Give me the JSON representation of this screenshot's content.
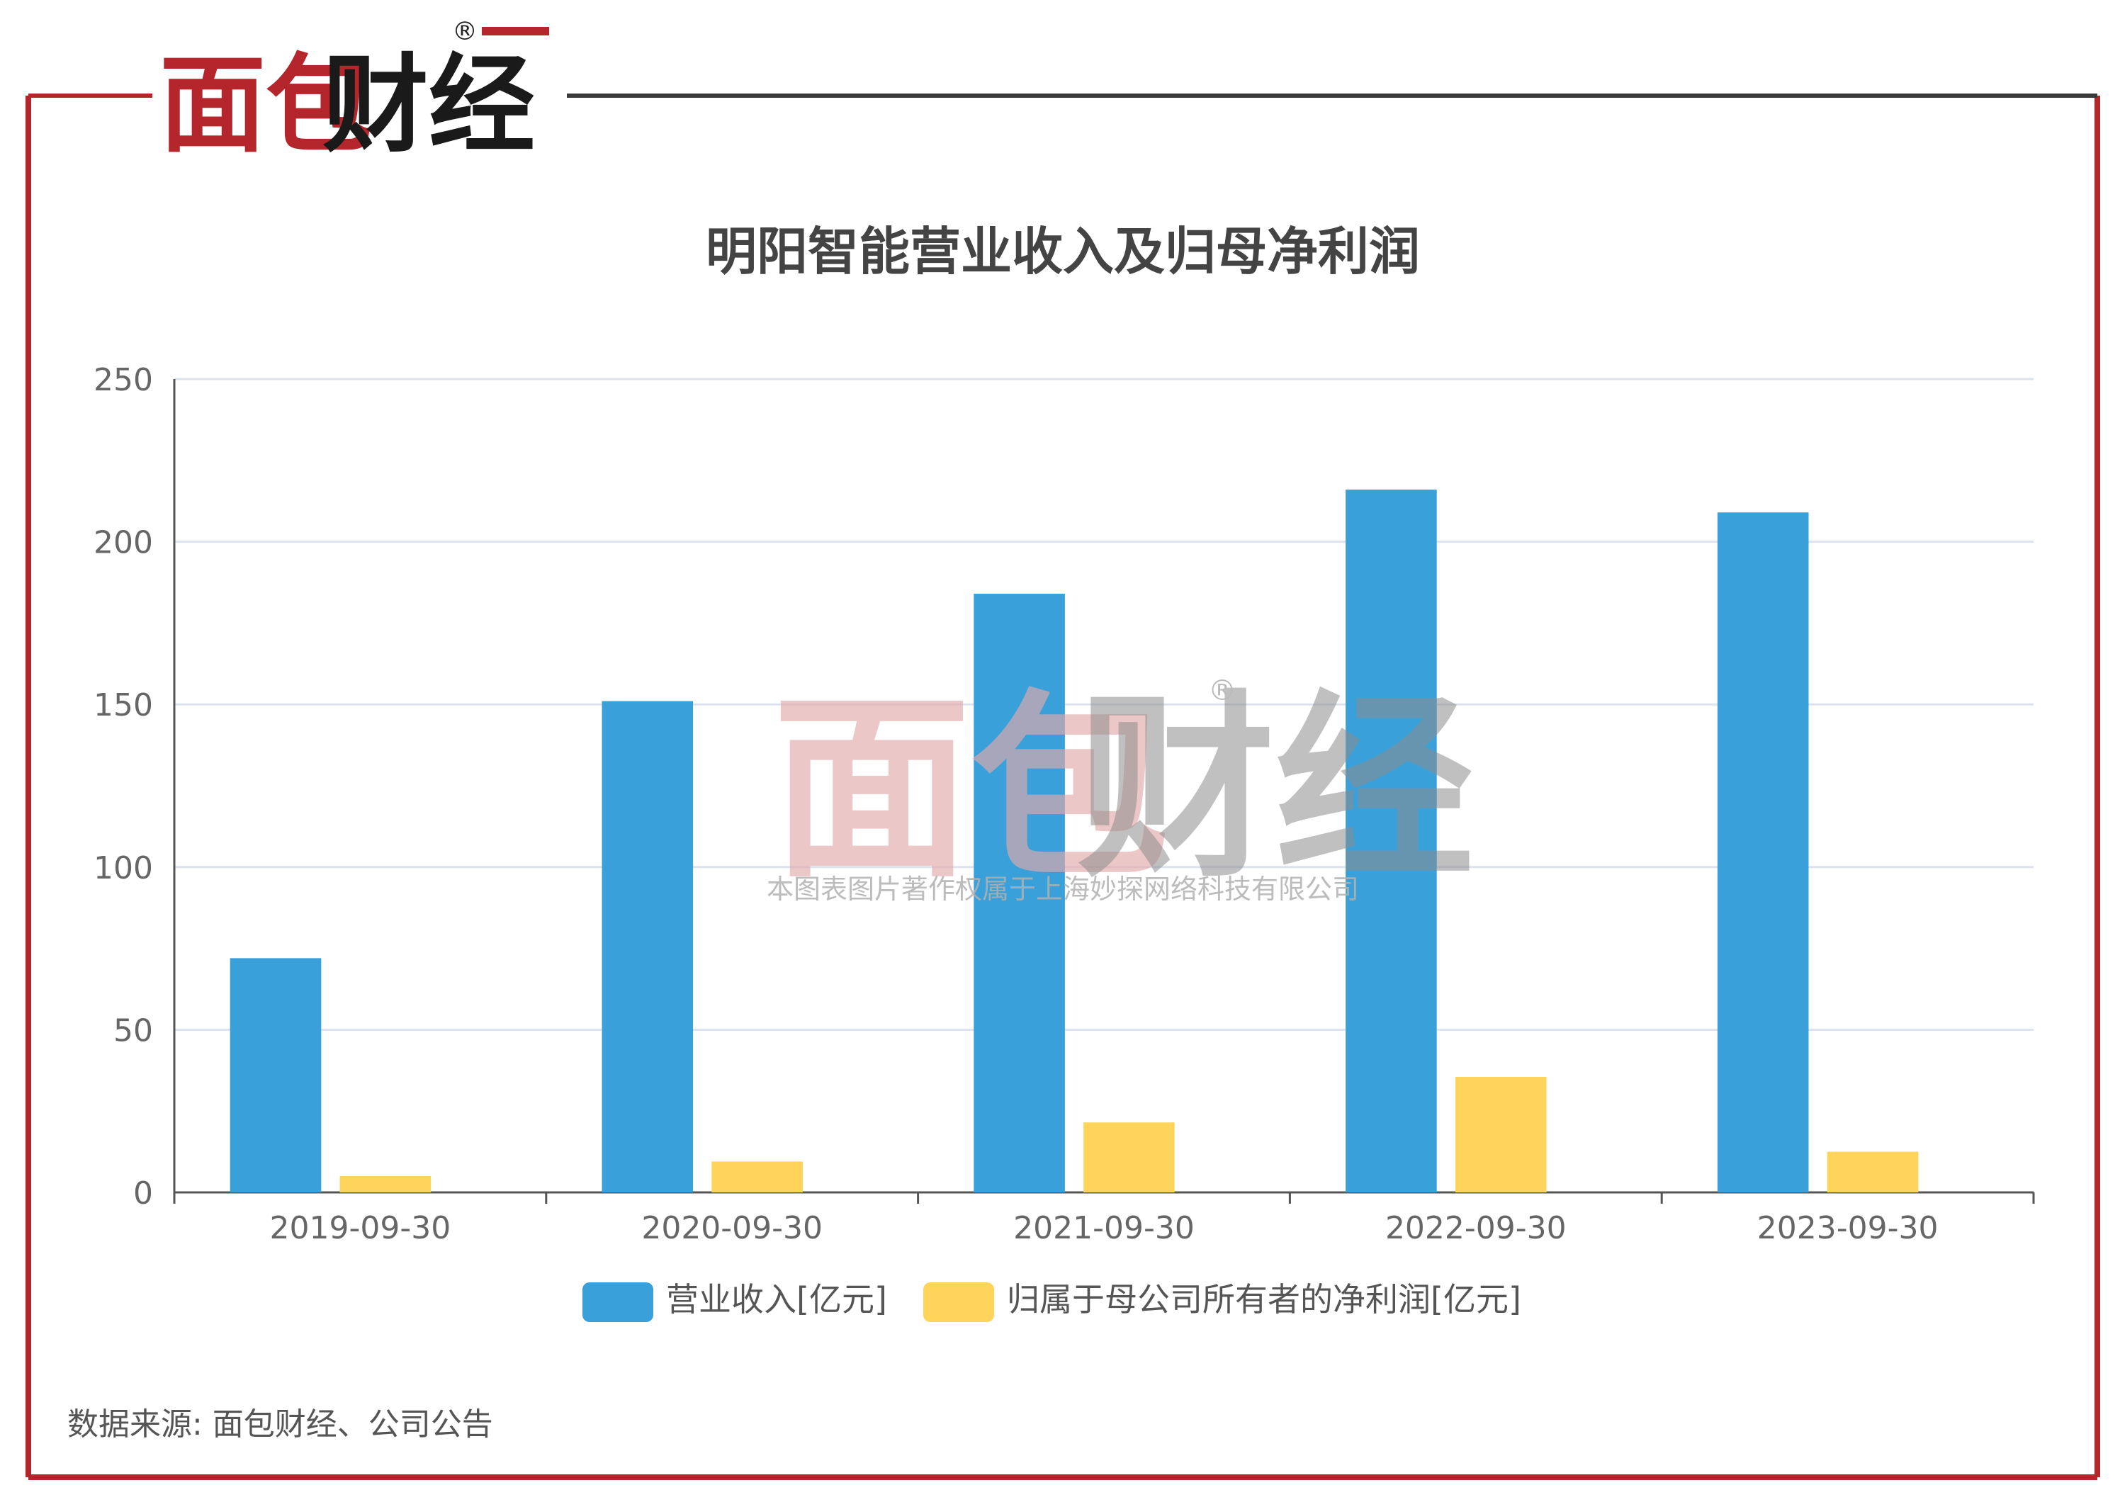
{
  "brand": {
    "logo_text": "面包财经",
    "registered_mark": "®",
    "watermark_text": "面包财经",
    "watermark_caption": "本图表图片著作权属于上海妙探网络科技有限公司"
  },
  "colors": {
    "frame_red": "#b5262c",
    "frame_dark": "#3a3a3a",
    "revenue_bar": "#3aa0d9",
    "profit_bar": "#fed55a",
    "gridline": "#dde3ee",
    "axis": "#555555",
    "tick_text": "#666666",
    "title_text": "#444444"
  },
  "chart_data": {
    "type": "bar",
    "title": "明阳智能营业收入及归母净利润",
    "categories": [
      "2019-09-30",
      "2020-09-30",
      "2021-09-30",
      "2022-09-30",
      "2023-09-30"
    ],
    "series": [
      {
        "name": "营业收入[亿元]",
        "color": "#3aa0d9",
        "values": [
          72,
          151,
          184,
          216,
          209
        ]
      },
      {
        "name": "归属于母公司所有者的净利润[亿元]",
        "color": "#fed55a",
        "values": [
          5,
          9.5,
          21.5,
          35.5,
          12.5
        ]
      }
    ],
    "ylim": [
      0,
      250
    ],
    "yticks": [
      0,
      50,
      100,
      150,
      200,
      250
    ],
    "grid": true,
    "legend_position": "bottom"
  },
  "footer": {
    "source": "数据来源: 面包财经、公司公告"
  }
}
